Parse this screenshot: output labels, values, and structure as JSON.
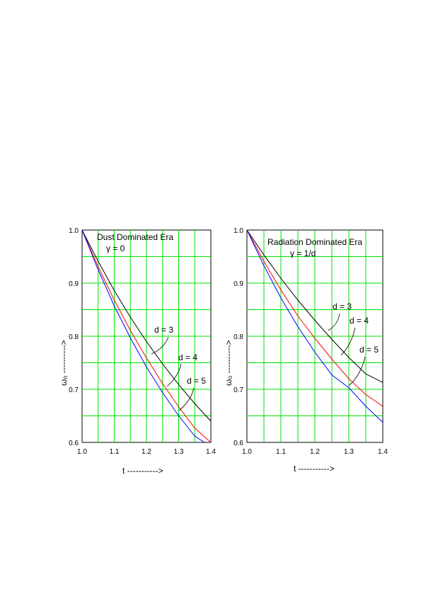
{
  "chart_data": [
    {
      "type": "line",
      "title": "Dust Dominated Era",
      "subtitle": "γ = 0",
      "xlabel": "t ----------->",
      "ylabel": "ω₀ ---------->",
      "xlim": [
        1.0,
        1.4
      ],
      "ylim": [
        0.6,
        1.0
      ],
      "xticks": [
        "1.0",
        "1.1",
        "1.2",
        "1.3",
        "1.4"
      ],
      "yticks": [
        "0.6",
        "0.7",
        "0.8",
        "0.9",
        "1.0"
      ],
      "grid": true,
      "series": [
        {
          "name": "d = 3",
          "color": "#000000",
          "x": [
            1.0,
            1.05,
            1.1,
            1.15,
            1.2,
            1.25,
            1.3,
            1.35,
            1.4
          ],
          "y": [
            1.0,
            0.941,
            0.886,
            0.836,
            0.79,
            0.748,
            0.709,
            0.673,
            0.64
          ]
        },
        {
          "name": "d = 4",
          "color": "#ff0000",
          "x": [
            1.0,
            1.05,
            1.1,
            1.15,
            1.2,
            1.25,
            1.3,
            1.35,
            1.4
          ],
          "y": [
            1.0,
            0.931,
            0.868,
            0.811,
            0.759,
            0.711,
            0.667,
            0.627,
            0.6
          ]
        },
        {
          "name": "d = 5",
          "color": "#0000ff",
          "x": [
            1.0,
            1.05,
            1.1,
            1.15,
            1.2,
            1.25,
            1.3,
            1.35,
            1.38
          ],
          "y": [
            1.0,
            0.925,
            0.857,
            0.797,
            0.742,
            0.694,
            0.65,
            0.612,
            0.6
          ]
        }
      ],
      "annotations": [
        "d = 3",
        "d = 4",
        "d = 5"
      ]
    },
    {
      "type": "line",
      "title": "Radiation Dominated Era",
      "subtitle": "γ = 1/d",
      "xlabel": "t ----------->",
      "ylabel": "ω₀ ---------->",
      "xlim": [
        1.0,
        1.4
      ],
      "ylim": [
        0.6,
        1.0
      ],
      "xticks": [
        "1.0",
        "1.1",
        "1.2",
        "1.3",
        "1.4"
      ],
      "yticks": [
        "0.6",
        "0.7",
        "0.8",
        "0.9",
        "1.0"
      ],
      "grid": true,
      "series": [
        {
          "name": "d = 3",
          "color": "#000000",
          "x": [
            1.0,
            1.05,
            1.1,
            1.15,
            1.2,
            1.25,
            1.3,
            1.35,
            1.4
          ],
          "y": [
            1.0,
            0.953,
            0.909,
            0.868,
            0.83,
            0.794,
            0.76,
            0.729,
            0.713
          ]
        },
        {
          "name": "d = 4",
          "color": "#ff0000",
          "x": [
            1.0,
            1.05,
            1.1,
            1.15,
            1.2,
            1.25,
            1.3,
            1.35,
            1.4
          ],
          "y": [
            1.0,
            0.941,
            0.887,
            0.838,
            0.796,
            0.757,
            0.72,
            0.69,
            0.668
          ]
        },
        {
          "name": "d = 5",
          "color": "#0000ff",
          "x": [
            1.0,
            1.05,
            1.1,
            1.15,
            1.2,
            1.25,
            1.3,
            1.35,
            1.4
          ],
          "y": [
            1.0,
            0.933,
            0.872,
            0.818,
            0.77,
            0.727,
            0.703,
            0.668,
            0.638
          ]
        }
      ],
      "annotations": [
        "d = 3",
        "d = 4",
        "d = 5"
      ]
    }
  ]
}
